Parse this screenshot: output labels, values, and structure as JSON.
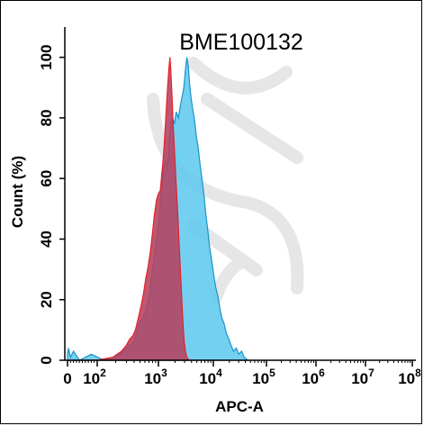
{
  "chart_data": {
    "type": "area",
    "title": "BME100132",
    "xlabel": "APC-A",
    "ylabel": "Count  (%)",
    "x_scale": "log",
    "xlim": [
      0,
      100000000
    ],
    "ylim": [
      0,
      110
    ],
    "x_ticks": [
      {
        "value": 0,
        "base": "0",
        "exp": ""
      },
      {
        "value": 100,
        "base": "10",
        "exp": "2"
      },
      {
        "value": 1000,
        "base": "10",
        "exp": "3"
      },
      {
        "value": 10000,
        "base": "10",
        "exp": "4"
      },
      {
        "value": 100000,
        "base": "10",
        "exp": "5"
      },
      {
        "value": 1000000,
        "base": "10",
        "exp": "6"
      },
      {
        "value": 10000000,
        "base": "10",
        "exp": "7"
      },
      {
        "value": 100000000,
        "base": "10",
        "exp": "8"
      }
    ],
    "y_ticks": [
      "0",
      "20",
      "40",
      "60",
      "80",
      "100"
    ],
    "y_tick_values": [
      0,
      20,
      40,
      60,
      80,
      100
    ],
    "grid": false,
    "series": [
      {
        "color": "#5bc8ee",
        "stroke": "#1b93c7",
        "points": [
          [
            0,
            2
          ],
          [
            3,
            4
          ],
          [
            10,
            1
          ],
          [
            20,
            3
          ],
          [
            40,
            0
          ],
          [
            80,
            2
          ],
          [
            130,
            0
          ],
          [
            200,
            1
          ],
          [
            300,
            4
          ],
          [
            400,
            6
          ],
          [
            480,
            12
          ],
          [
            560,
            14
          ],
          [
            640,
            17
          ],
          [
            720,
            22
          ],
          [
            800,
            30
          ],
          [
            880,
            35
          ],
          [
            960,
            42
          ],
          [
            1050,
            48
          ],
          [
            1150,
            58
          ],
          [
            1250,
            64
          ],
          [
            1350,
            66
          ],
          [
            1450,
            63
          ],
          [
            1550,
            70
          ],
          [
            1650,
            78
          ],
          [
            1800,
            80
          ],
          [
            1950,
            78
          ],
          [
            2100,
            82
          ],
          [
            2300,
            80
          ],
          [
            2500,
            84
          ],
          [
            2700,
            87
          ],
          [
            2900,
            90
          ],
          [
            3100,
            96
          ],
          [
            3300,
            100
          ],
          [
            3500,
            97
          ],
          [
            3700,
            91
          ],
          [
            3900,
            87
          ],
          [
            4200,
            83
          ],
          [
            4500,
            80
          ],
          [
            4900,
            74
          ],
          [
            5300,
            70
          ],
          [
            5700,
            65
          ],
          [
            6200,
            60
          ],
          [
            6700,
            55
          ],
          [
            7300,
            48
          ],
          [
            7900,
            43
          ],
          [
            8600,
            37
          ],
          [
            9300,
            33
          ],
          [
            10200,
            28
          ],
          [
            11100,
            24
          ],
          [
            12200,
            21
          ],
          [
            13300,
            17
          ],
          [
            14500,
            14
          ],
          [
            16000,
            12
          ],
          [
            17500,
            9
          ],
          [
            19500,
            7
          ],
          [
            21500,
            5
          ],
          [
            24000,
            3
          ],
          [
            27000,
            4
          ],
          [
            30000,
            2
          ],
          [
            34000,
            3
          ],
          [
            38000,
            1
          ],
          [
            45000,
            0
          ]
        ]
      },
      {
        "color": "#b5405e",
        "stroke": "#e8202a",
        "points": [
          [
            0,
            0
          ],
          [
            100,
            0
          ],
          [
            180,
            1
          ],
          [
            250,
            3
          ],
          [
            300,
            5
          ],
          [
            340,
            7
          ],
          [
            380,
            8
          ],
          [
            420,
            10
          ],
          [
            470,
            14
          ],
          [
            520,
            18
          ],
          [
            570,
            22
          ],
          [
            620,
            27
          ],
          [
            680,
            31
          ],
          [
            740,
            36
          ],
          [
            800,
            42
          ],
          [
            860,
            48
          ],
          [
            930,
            53
          ],
          [
            1000,
            55
          ],
          [
            1080,
            56
          ],
          [
            1160,
            62
          ],
          [
            1240,
            68
          ],
          [
            1320,
            76
          ],
          [
            1400,
            84
          ],
          [
            1480,
            91
          ],
          [
            1560,
            97
          ],
          [
            1620,
            100
          ],
          [
            1680,
            96
          ],
          [
            1760,
            88
          ],
          [
            1850,
            78
          ],
          [
            1950,
            70
          ],
          [
            2050,
            62
          ],
          [
            2150,
            55
          ],
          [
            2250,
            48
          ],
          [
            2350,
            41
          ],
          [
            2450,
            34
          ],
          [
            2550,
            27
          ],
          [
            2650,
            21
          ],
          [
            2750,
            15
          ],
          [
            2850,
            10
          ],
          [
            2950,
            6
          ],
          [
            3100,
            3
          ],
          [
            3300,
            1
          ],
          [
            3600,
            0
          ]
        ]
      }
    ]
  }
}
